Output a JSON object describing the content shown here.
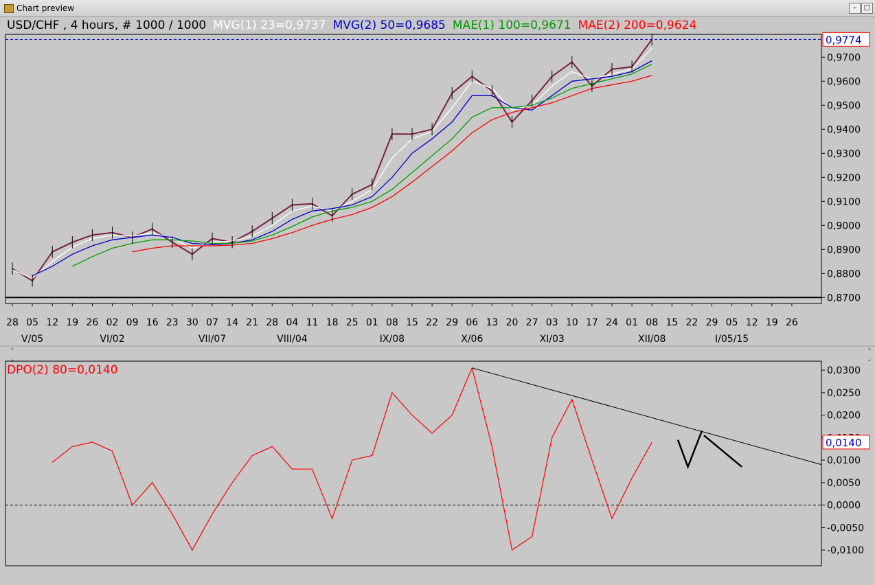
{
  "window": {
    "title": "Chart preview",
    "minimize_glyph": "–",
    "maximize_glyph": "□"
  },
  "price_panel": {
    "legend": [
      {
        "text": "USD/CHF , 4 hours, # 1000 / 1000",
        "color": "#000000"
      },
      {
        "text": "MVG(1) 23=0,9737",
        "color": "#ffffff"
      },
      {
        "text": "MVG(2) 50=0,9685",
        "color": "#0000cc"
      },
      {
        "text": "MAE(1) 100=0,9671",
        "color": "#009900"
      },
      {
        "text": "MAE(2) 200=0,9624",
        "color": "#ff0000"
      }
    ],
    "current_price_label": "0,9774",
    "y_ticks": [
      "0,9700",
      "0,9600",
      "0,9500",
      "0,9400",
      "0,9300",
      "0,9200",
      "0,9100",
      "0,9000",
      "0,8900",
      "0,8800",
      "0,8700"
    ],
    "day_ticks": [
      "28",
      "05",
      "12",
      "19",
      "26",
      "02",
      "09",
      "16",
      "23",
      "30",
      "07",
      "14",
      "21",
      "28",
      "04",
      "11",
      "18",
      "25",
      "01",
      "08",
      "15",
      "22",
      "29",
      "06",
      "13",
      "20",
      "27",
      "03",
      "10",
      "17",
      "24",
      "01",
      "08",
      "15",
      "22",
      "29",
      "05",
      "12",
      "19",
      "26"
    ],
    "month_ticks": [
      "V/05",
      "VI/02",
      "VII/07",
      "VIII/04",
      "IX/08",
      "X/06",
      "XI/03",
      "XII/08",
      "I/05/15"
    ]
  },
  "indicator_panel": {
    "legend": "DPO(2) 80=0,0140",
    "current_value_label": "0,0140",
    "y_ticks": [
      "0,0300",
      "0,0250",
      "0,0200",
      "0,0150",
      "0,0100",
      "0,0050",
      "0,0000",
      "-0,0050",
      "-0,0100"
    ]
  },
  "chart_data": [
    {
      "type": "line",
      "title": "USD/CHF , 4 hours, # 1000 / 1000",
      "ylim": [
        0.8675,
        0.9795
      ],
      "x": [
        "28",
        "05",
        "12",
        "19",
        "26",
        "02",
        "09",
        "16",
        "23",
        "30",
        "07",
        "14",
        "21",
        "28",
        "04",
        "11",
        "18",
        "25",
        "01",
        "08",
        "15",
        "22",
        "29",
        "06",
        "13",
        "20",
        "27",
        "03",
        "10",
        "17",
        "24",
        "01",
        "08"
      ],
      "series": [
        {
          "name": "USD/CHF",
          "values": [
            0.882,
            0.877,
            0.889,
            0.893,
            0.896,
            0.897,
            0.895,
            0.8985,
            0.893,
            0.888,
            0.8945,
            0.893,
            0.8975,
            0.903,
            0.9085,
            0.909,
            0.904,
            0.913,
            0.917,
            0.938,
            0.938,
            0.94,
            0.955,
            0.962,
            0.956,
            0.943,
            0.952,
            0.962,
            0.968,
            0.958,
            0.965,
            0.966,
            0.9774
          ]
        },
        {
          "name": "MVG(1) 23",
          "values": [
            0.8815,
            0.878,
            0.885,
            0.891,
            0.8945,
            0.896,
            0.8955,
            0.897,
            0.8945,
            0.8905,
            0.893,
            0.8935,
            0.8955,
            0.9,
            0.906,
            0.908,
            0.906,
            0.91,
            0.915,
            0.928,
            0.936,
            0.939,
            0.949,
            0.96,
            0.957,
            0.948,
            0.95,
            0.958,
            0.964,
            0.961,
            0.963,
            0.965,
            0.9737
          ]
        },
        {
          "name": "MVG(2) 50",
          "values": [
            null,
            0.879,
            0.883,
            0.888,
            0.8915,
            0.894,
            0.895,
            0.896,
            0.895,
            0.8925,
            0.892,
            0.8925,
            0.894,
            0.8975,
            0.9025,
            0.906,
            0.907,
            0.9085,
            0.912,
            0.92,
            0.93,
            0.936,
            0.943,
            0.954,
            0.954,
            0.949,
            0.948,
            0.954,
            0.96,
            0.961,
            0.962,
            0.964,
            0.9685
          ]
        },
        {
          "name": "MAE(1) 100",
          "values": [
            null,
            null,
            null,
            0.883,
            0.887,
            0.8905,
            0.8925,
            0.894,
            0.894,
            0.8935,
            0.8925,
            0.8925,
            0.8935,
            0.896,
            0.8995,
            0.9035,
            0.906,
            0.9075,
            0.91,
            0.915,
            0.922,
            0.929,
            0.936,
            0.945,
            0.949,
            0.949,
            0.95,
            0.953,
            0.957,
            0.959,
            0.961,
            0.963,
            0.9671
          ]
        },
        {
          "name": "MAE(2) 200",
          "values": [
            null,
            null,
            null,
            null,
            null,
            null,
            0.889,
            0.8905,
            0.8915,
            0.8915,
            0.8915,
            0.8918,
            0.8925,
            0.8945,
            0.897,
            0.9,
            0.9025,
            0.9045,
            0.9075,
            0.912,
            0.918,
            0.9245,
            0.931,
            0.9385,
            0.944,
            0.947,
            0.949,
            0.951,
            0.954,
            0.957,
            0.9585,
            0.96,
            0.9624
          ]
        }
      ]
    },
    {
      "type": "line",
      "title": "DPO(2) 80=0,0140",
      "ylim": [
        -0.0135,
        0.032
      ],
      "x": [
        "12",
        "19",
        "26",
        "02",
        "09",
        "16",
        "23",
        "30",
        "07",
        "14",
        "21",
        "28",
        "04",
        "11",
        "18",
        "25",
        "01",
        "08",
        "15",
        "22",
        "29",
        "06",
        "13",
        "20",
        "27",
        "03",
        "10",
        "17",
        "24",
        "01",
        "08"
      ],
      "series": [
        {
          "name": "DPO(2) 80",
          "values": [
            0.0095,
            0.013,
            0.014,
            0.012,
            0.0,
            0.005,
            -0.002,
            -0.01,
            -0.002,
            0.005,
            0.011,
            0.013,
            0.008,
            0.008,
            -0.003,
            0.01,
            0.011,
            0.025,
            0.02,
            0.016,
            0.02,
            0.0305,
            0.013,
            -0.01,
            -0.007,
            0.015,
            0.0235,
            0.01,
            -0.003,
            0.006,
            0.014
          ]
        }
      ]
    }
  ]
}
